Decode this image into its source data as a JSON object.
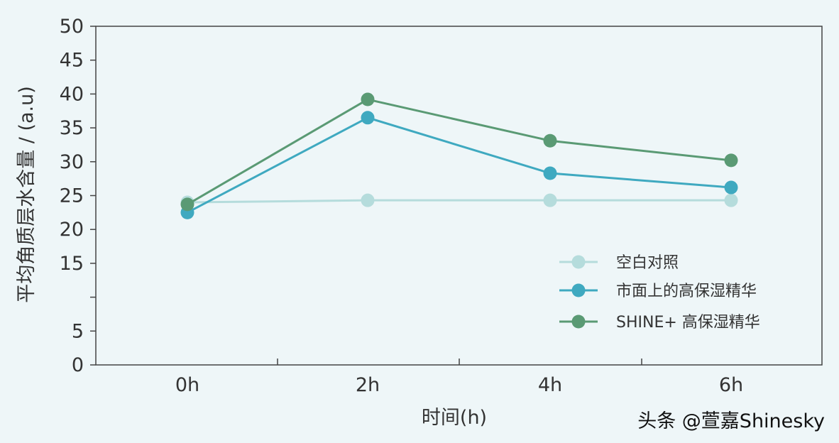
{
  "chart_data": {
    "type": "line",
    "title": "",
    "xlabel": "时间(h)",
    "ylabel": "平均角质层水含量 / (a.u)",
    "categories": [
      "0h",
      "2h",
      "4h",
      "6h"
    ],
    "y_ticks": [
      0,
      5,
      15,
      20,
      25,
      30,
      35,
      40,
      45,
      50
    ],
    "ylim": [
      0,
      50
    ],
    "grid": false,
    "legend_position": "bottom-right",
    "series": [
      {
        "name": "空白对照",
        "values": [
          24,
          24.3,
          24.3,
          24.3
        ],
        "color": "#b5dcdc"
      },
      {
        "name": "市面上的高保湿精华",
        "values": [
          22.5,
          36.5,
          28.3,
          26.2
        ],
        "color": "#3fa9c0"
      },
      {
        "name": "SHINE+ 高保湿精华",
        "values": [
          23.7,
          39.2,
          33.1,
          30.2
        ],
        "color": "#5a9a74"
      }
    ]
  },
  "watermark": "头条 @萱嘉Shinesky"
}
